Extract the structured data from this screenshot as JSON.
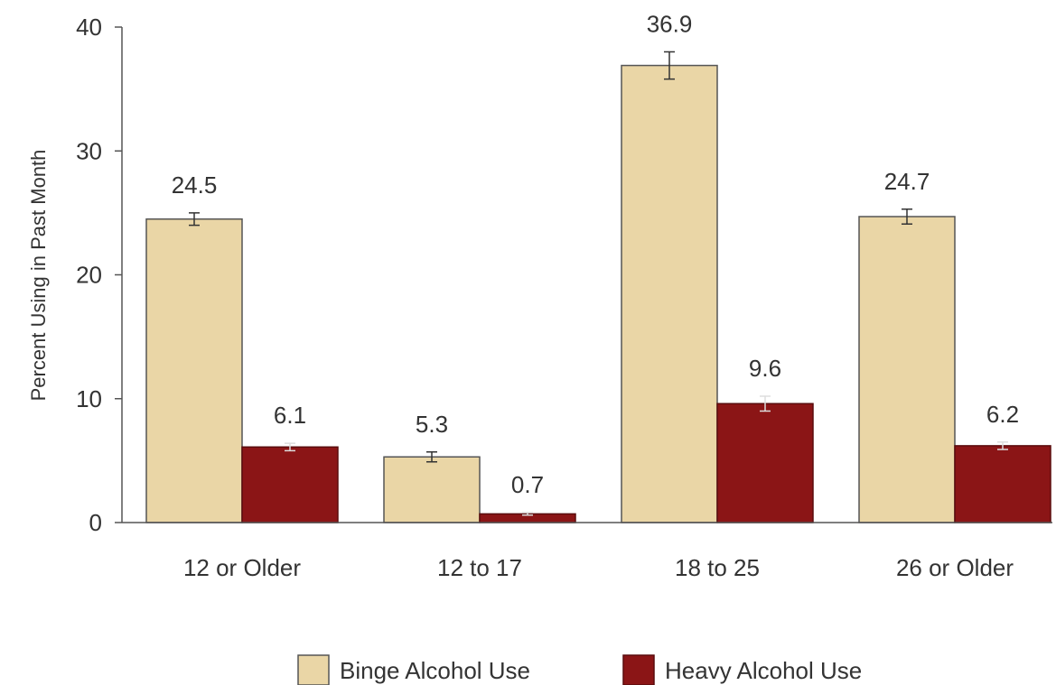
{
  "chart_data": {
    "type": "bar",
    "ylabel": "Percent Using in Past Month",
    "xlabel": "",
    "ylim": [
      0,
      40
    ],
    "yticks": [
      0,
      10,
      20,
      30,
      40
    ],
    "grid": false,
    "legend_position": "bottom",
    "categories": [
      "12 or Older",
      "12 to 17",
      "18 to 25",
      "26 or Older"
    ],
    "series": [
      {
        "name": "Binge Alcohol Use",
        "color": "#ead6a6",
        "values": [
          24.5,
          5.3,
          36.9,
          24.7
        ],
        "labels": [
          "24.5",
          "5.3",
          "36.9",
          "24.7"
        ],
        "error": [
          0.5,
          0.4,
          1.1,
          0.6
        ]
      },
      {
        "name": "Heavy Alcohol Use",
        "color": "#8b1516",
        "values": [
          6.1,
          0.7,
          9.6,
          6.2
        ],
        "labels": [
          "6.1",
          "0.7",
          "9.6",
          "6.2"
        ],
        "error": [
          0.3,
          0.1,
          0.6,
          0.3
        ]
      }
    ]
  }
}
